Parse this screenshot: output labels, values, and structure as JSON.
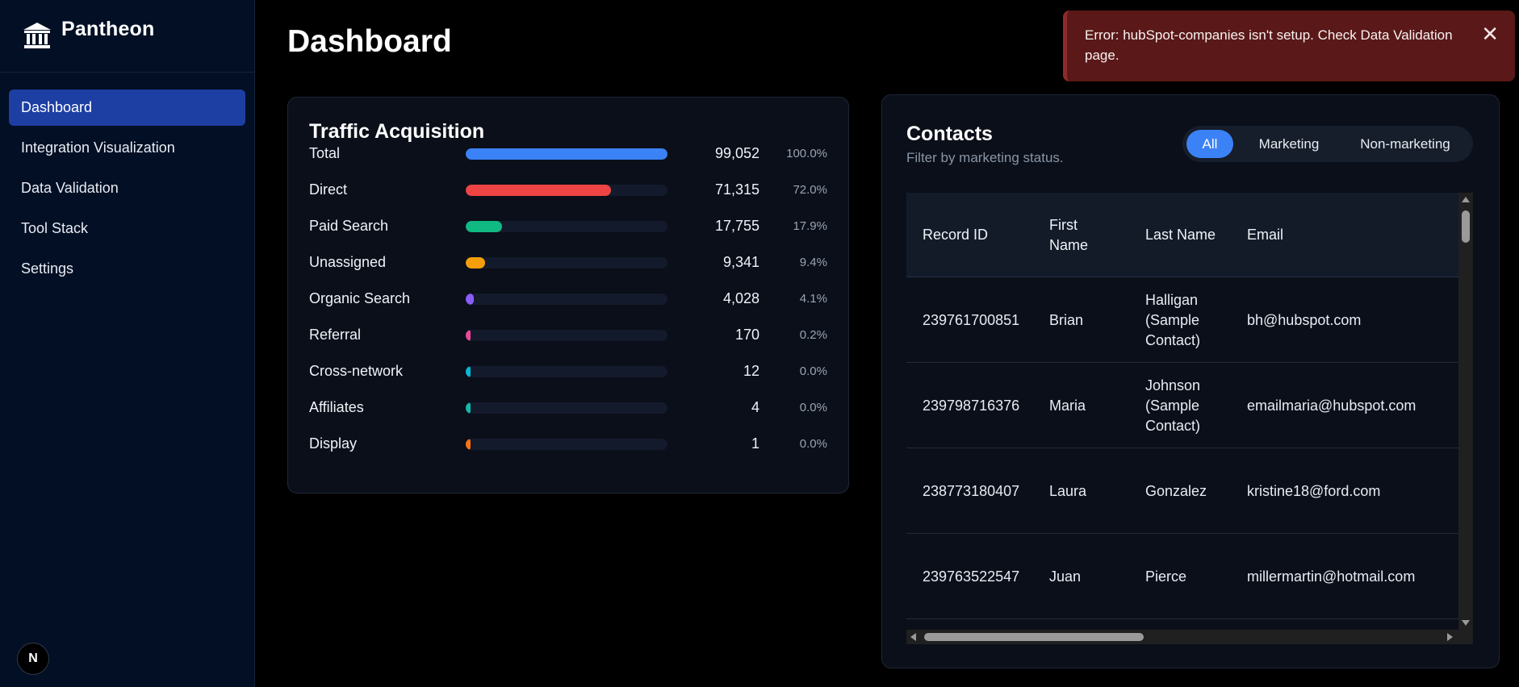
{
  "app": {
    "name": "Pantheon",
    "logo_icon": "bank-building-icon"
  },
  "sidebar": {
    "items": [
      {
        "label": "Dashboard",
        "active": true
      },
      {
        "label": "Integration Visualization",
        "active": false
      },
      {
        "label": "Data Validation",
        "active": false
      },
      {
        "label": "Tool Stack",
        "active": false
      },
      {
        "label": "Settings",
        "active": false
      }
    ],
    "badge": "N"
  },
  "page": {
    "title": "Dashboard"
  },
  "traffic": {
    "title": "Traffic Acquisition",
    "rows": [
      {
        "label": "Total",
        "value": "99,052",
        "pct": "100.0%",
        "fraction": 1.0,
        "color": "#3b82f6"
      },
      {
        "label": "Direct",
        "value": "71,315",
        "pct": "72.0%",
        "fraction": 0.72,
        "color": "#ef4444"
      },
      {
        "label": "Paid Search",
        "value": "17,755",
        "pct": "17.9%",
        "fraction": 0.179,
        "color": "#10b981"
      },
      {
        "label": "Unassigned",
        "value": "9,341",
        "pct": "9.4%",
        "fraction": 0.094,
        "color": "#f59e0b"
      },
      {
        "label": "Organic Search",
        "value": "4,028",
        "pct": "4.1%",
        "fraction": 0.041,
        "color": "#8b5cf6"
      },
      {
        "label": "Referral",
        "value": "170",
        "pct": "0.2%",
        "fraction": 0.002,
        "color": "#ec4899"
      },
      {
        "label": "Cross-network",
        "value": "12",
        "pct": "0.0%",
        "fraction": 0.0,
        "color": "#06b6d4"
      },
      {
        "label": "Affiliates",
        "value": "4",
        "pct": "0.0%",
        "fraction": 0.0,
        "color": "#14b8a6"
      },
      {
        "label": "Display",
        "value": "1",
        "pct": "0.0%",
        "fraction": 0.0,
        "color": "#f97316"
      }
    ]
  },
  "contacts": {
    "title": "Contacts",
    "subtitle": "Filter by marketing status.",
    "filters": [
      {
        "label": "All",
        "active": true
      },
      {
        "label": "Marketing",
        "active": false
      },
      {
        "label": "Non-marketing",
        "active": false
      }
    ],
    "columns": [
      "Record ID",
      "First Name",
      "Last Name",
      "Email"
    ],
    "rows": [
      {
        "record_id": "239761700851",
        "first_name": "Brian",
        "last_name": "Halligan (Sample Contact)",
        "email": "bh@hubspot.com"
      },
      {
        "record_id": "239798716376",
        "first_name": "Maria",
        "last_name": "Johnson (Sample Contact)",
        "email": "emailmaria@hubspot.com"
      },
      {
        "record_id": "238773180407",
        "first_name": "Laura",
        "last_name": "Gonzalez",
        "email": "kristine18@ford.com"
      },
      {
        "record_id": "239763522547",
        "first_name": "Juan",
        "last_name": "Pierce",
        "email": "millermartin@hotmail.com"
      }
    ]
  },
  "toast": {
    "message": "Error: hubSpot-companies isn't setup. Check Data Validation page.",
    "close_icon": "close-icon"
  }
}
